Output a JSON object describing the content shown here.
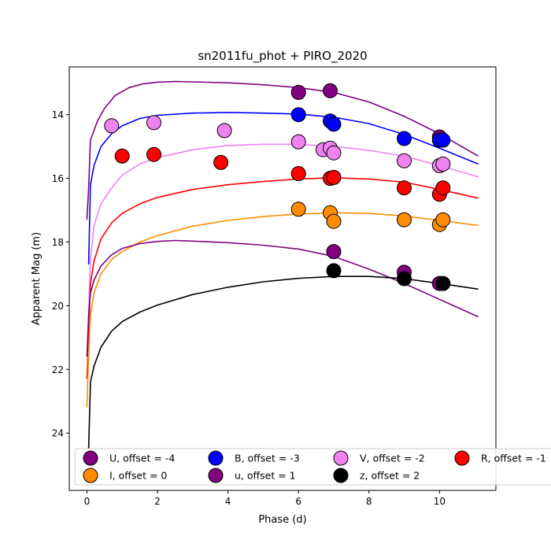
{
  "chart_data": {
    "type": "scatter",
    "title": "sn2011fu_phot + PIRO_2020",
    "xlabel": "Phase (d)",
    "ylabel": "Apparent Mag (m)",
    "xlim": [
      -0.5,
      11.6
    ],
    "ylim": [
      25.8,
      12.5
    ],
    "y_inverted": true,
    "xticks": [
      0,
      2,
      4,
      6,
      8,
      10
    ],
    "yticks": [
      14,
      16,
      18,
      20,
      22,
      24
    ],
    "legend_position": "bottom",
    "grid": false,
    "series": [
      {
        "name": "U, offset = -4",
        "color": "#800080",
        "points": [
          [
            6.0,
            13.3
          ],
          [
            6.9,
            13.25
          ],
          [
            10.0,
            14.7
          ]
        ],
        "model": [
          [
            0.0,
            17.3
          ],
          [
            0.05,
            16.3
          ],
          [
            0.1,
            14.8
          ],
          [
            0.3,
            14.2
          ],
          [
            0.5,
            13.8
          ],
          [
            0.8,
            13.4
          ],
          [
            1.2,
            13.15
          ],
          [
            1.6,
            13.03
          ],
          [
            2.0,
            12.98
          ],
          [
            2.5,
            12.96
          ],
          [
            3.0,
            12.97
          ],
          [
            4.0,
            13.0
          ],
          [
            5.0,
            13.06
          ],
          [
            6.0,
            13.15
          ],
          [
            7.0,
            13.3
          ],
          [
            8.0,
            13.6
          ],
          [
            9.0,
            14.05
          ],
          [
            10.0,
            14.6
          ],
          [
            11.1,
            15.3
          ]
        ]
      },
      {
        "name": "B, offset = -3",
        "color": "#0000ff",
        "points": [
          [
            6.0,
            14.0
          ],
          [
            6.9,
            14.2
          ],
          [
            7.0,
            14.3
          ],
          [
            9.0,
            14.75
          ],
          [
            10.0,
            14.8
          ],
          [
            10.1,
            14.8
          ]
        ],
        "model": [
          [
            0.05,
            18.7
          ],
          [
            0.1,
            16.2
          ],
          [
            0.2,
            15.6
          ],
          [
            0.4,
            15.0
          ],
          [
            0.7,
            14.6
          ],
          [
            1.0,
            14.35
          ],
          [
            1.5,
            14.12
          ],
          [
            2.0,
            14.02
          ],
          [
            3.0,
            13.95
          ],
          [
            4.0,
            13.93
          ],
          [
            5.0,
            13.95
          ],
          [
            6.0,
            13.98
          ],
          [
            7.0,
            14.08
          ],
          [
            8.0,
            14.28
          ],
          [
            9.0,
            14.62
          ],
          [
            10.0,
            15.05
          ],
          [
            11.1,
            15.55
          ]
        ]
      },
      {
        "name": "V, offset = -2",
        "color": "#ee82ee",
        "points": [
          [
            0.7,
            14.35
          ],
          [
            1.9,
            14.25
          ],
          [
            3.9,
            14.5
          ],
          [
            6.0,
            14.85
          ],
          [
            6.7,
            15.1
          ],
          [
            6.9,
            15.05
          ],
          [
            7.0,
            15.2
          ],
          [
            9.0,
            15.45
          ],
          [
            10.0,
            15.6
          ],
          [
            10.1,
            15.55
          ]
        ],
        "model": [
          [
            0.05,
            20.2
          ],
          [
            0.1,
            18.5
          ],
          [
            0.2,
            17.5
          ],
          [
            0.4,
            16.8
          ],
          [
            0.7,
            16.3
          ],
          [
            1.0,
            15.9
          ],
          [
            1.5,
            15.55
          ],
          [
            2.0,
            15.35
          ],
          [
            3.0,
            15.1
          ],
          [
            4.0,
            14.97
          ],
          [
            5.0,
            14.93
          ],
          [
            6.0,
            14.93
          ],
          [
            7.0,
            15.0
          ],
          [
            8.0,
            15.12
          ],
          [
            9.0,
            15.3
          ],
          [
            10.0,
            15.6
          ],
          [
            11.1,
            15.95
          ]
        ]
      },
      {
        "name": "R, offset = -1",
        "color": "#ff0000",
        "points": [
          [
            1.0,
            15.3
          ],
          [
            1.9,
            15.25
          ],
          [
            3.8,
            15.5
          ],
          [
            6.0,
            15.85
          ],
          [
            6.9,
            16.0
          ],
          [
            7.0,
            15.97
          ],
          [
            9.0,
            16.3
          ],
          [
            10.0,
            16.5
          ],
          [
            10.1,
            16.3
          ]
        ],
        "model": [
          [
            0.0,
            22.3
          ],
          [
            0.05,
            21.0
          ],
          [
            0.1,
            19.3
          ],
          [
            0.2,
            18.6
          ],
          [
            0.4,
            17.9
          ],
          [
            0.7,
            17.4
          ],
          [
            1.0,
            17.1
          ],
          [
            1.5,
            16.8
          ],
          [
            2.0,
            16.6
          ],
          [
            3.0,
            16.35
          ],
          [
            4.0,
            16.2
          ],
          [
            5.0,
            16.1
          ],
          [
            6.0,
            16.02
          ],
          [
            7.0,
            15.98
          ],
          [
            8.0,
            16.02
          ],
          [
            9.0,
            16.12
          ],
          [
            10.0,
            16.35
          ],
          [
            11.1,
            16.62
          ]
        ]
      },
      {
        "name": "I, offset = 0",
        "color": "#ff8c00",
        "points": [
          [
            6.0,
            16.97
          ],
          [
            6.9,
            17.08
          ],
          [
            7.0,
            17.35
          ],
          [
            9.0,
            17.3
          ],
          [
            10.0,
            17.45
          ],
          [
            10.1,
            17.3
          ]
        ],
        "model": [
          [
            0.0,
            23.2
          ],
          [
            0.05,
            21.5
          ],
          [
            0.1,
            20.3
          ],
          [
            0.2,
            19.6
          ],
          [
            0.4,
            19.0
          ],
          [
            0.7,
            18.55
          ],
          [
            1.0,
            18.3
          ],
          [
            1.5,
            18.0
          ],
          [
            2.0,
            17.8
          ],
          [
            3.0,
            17.5
          ],
          [
            4.0,
            17.32
          ],
          [
            5.0,
            17.2
          ],
          [
            6.0,
            17.12
          ],
          [
            7.0,
            17.08
          ],
          [
            8.0,
            17.1
          ],
          [
            9.0,
            17.18
          ],
          [
            10.0,
            17.32
          ],
          [
            11.1,
            17.48
          ]
        ]
      },
      {
        "name": "u, offset = 1",
        "color": "#800080",
        "points": [
          [
            7.0,
            18.3
          ],
          [
            9.0,
            18.95
          ],
          [
            10.0,
            19.3
          ]
        ],
        "model": [
          [
            0.0,
            21.6
          ],
          [
            0.05,
            20.3
          ],
          [
            0.1,
            19.6
          ],
          [
            0.2,
            19.2
          ],
          [
            0.4,
            18.75
          ],
          [
            0.7,
            18.4
          ],
          [
            1.0,
            18.2
          ],
          [
            1.5,
            18.05
          ],
          [
            2.0,
            17.98
          ],
          [
            2.5,
            17.95
          ],
          [
            3.0,
            17.97
          ],
          [
            4.0,
            18.02
          ],
          [
            5.0,
            18.1
          ],
          [
            6.0,
            18.22
          ],
          [
            7.0,
            18.45
          ],
          [
            8.0,
            18.85
          ],
          [
            9.0,
            19.3
          ],
          [
            10.0,
            19.8
          ],
          [
            11.1,
            20.35
          ]
        ]
      },
      {
        "name": "z, offset = 2",
        "color": "#000000",
        "points": [
          [
            7.0,
            18.9
          ],
          [
            9.0,
            19.15
          ],
          [
            10.1,
            19.3
          ]
        ],
        "model": [
          [
            0.05,
            24.5
          ],
          [
            0.1,
            22.4
          ],
          [
            0.2,
            21.9
          ],
          [
            0.4,
            21.3
          ],
          [
            0.7,
            20.8
          ],
          [
            1.0,
            20.5
          ],
          [
            1.5,
            20.2
          ],
          [
            2.0,
            19.98
          ],
          [
            3.0,
            19.65
          ],
          [
            4.0,
            19.42
          ],
          [
            5.0,
            19.25
          ],
          [
            6.0,
            19.14
          ],
          [
            7.0,
            19.08
          ],
          [
            8.0,
            19.08
          ],
          [
            9.0,
            19.15
          ],
          [
            10.0,
            19.3
          ],
          [
            11.1,
            19.48
          ]
        ]
      }
    ]
  }
}
